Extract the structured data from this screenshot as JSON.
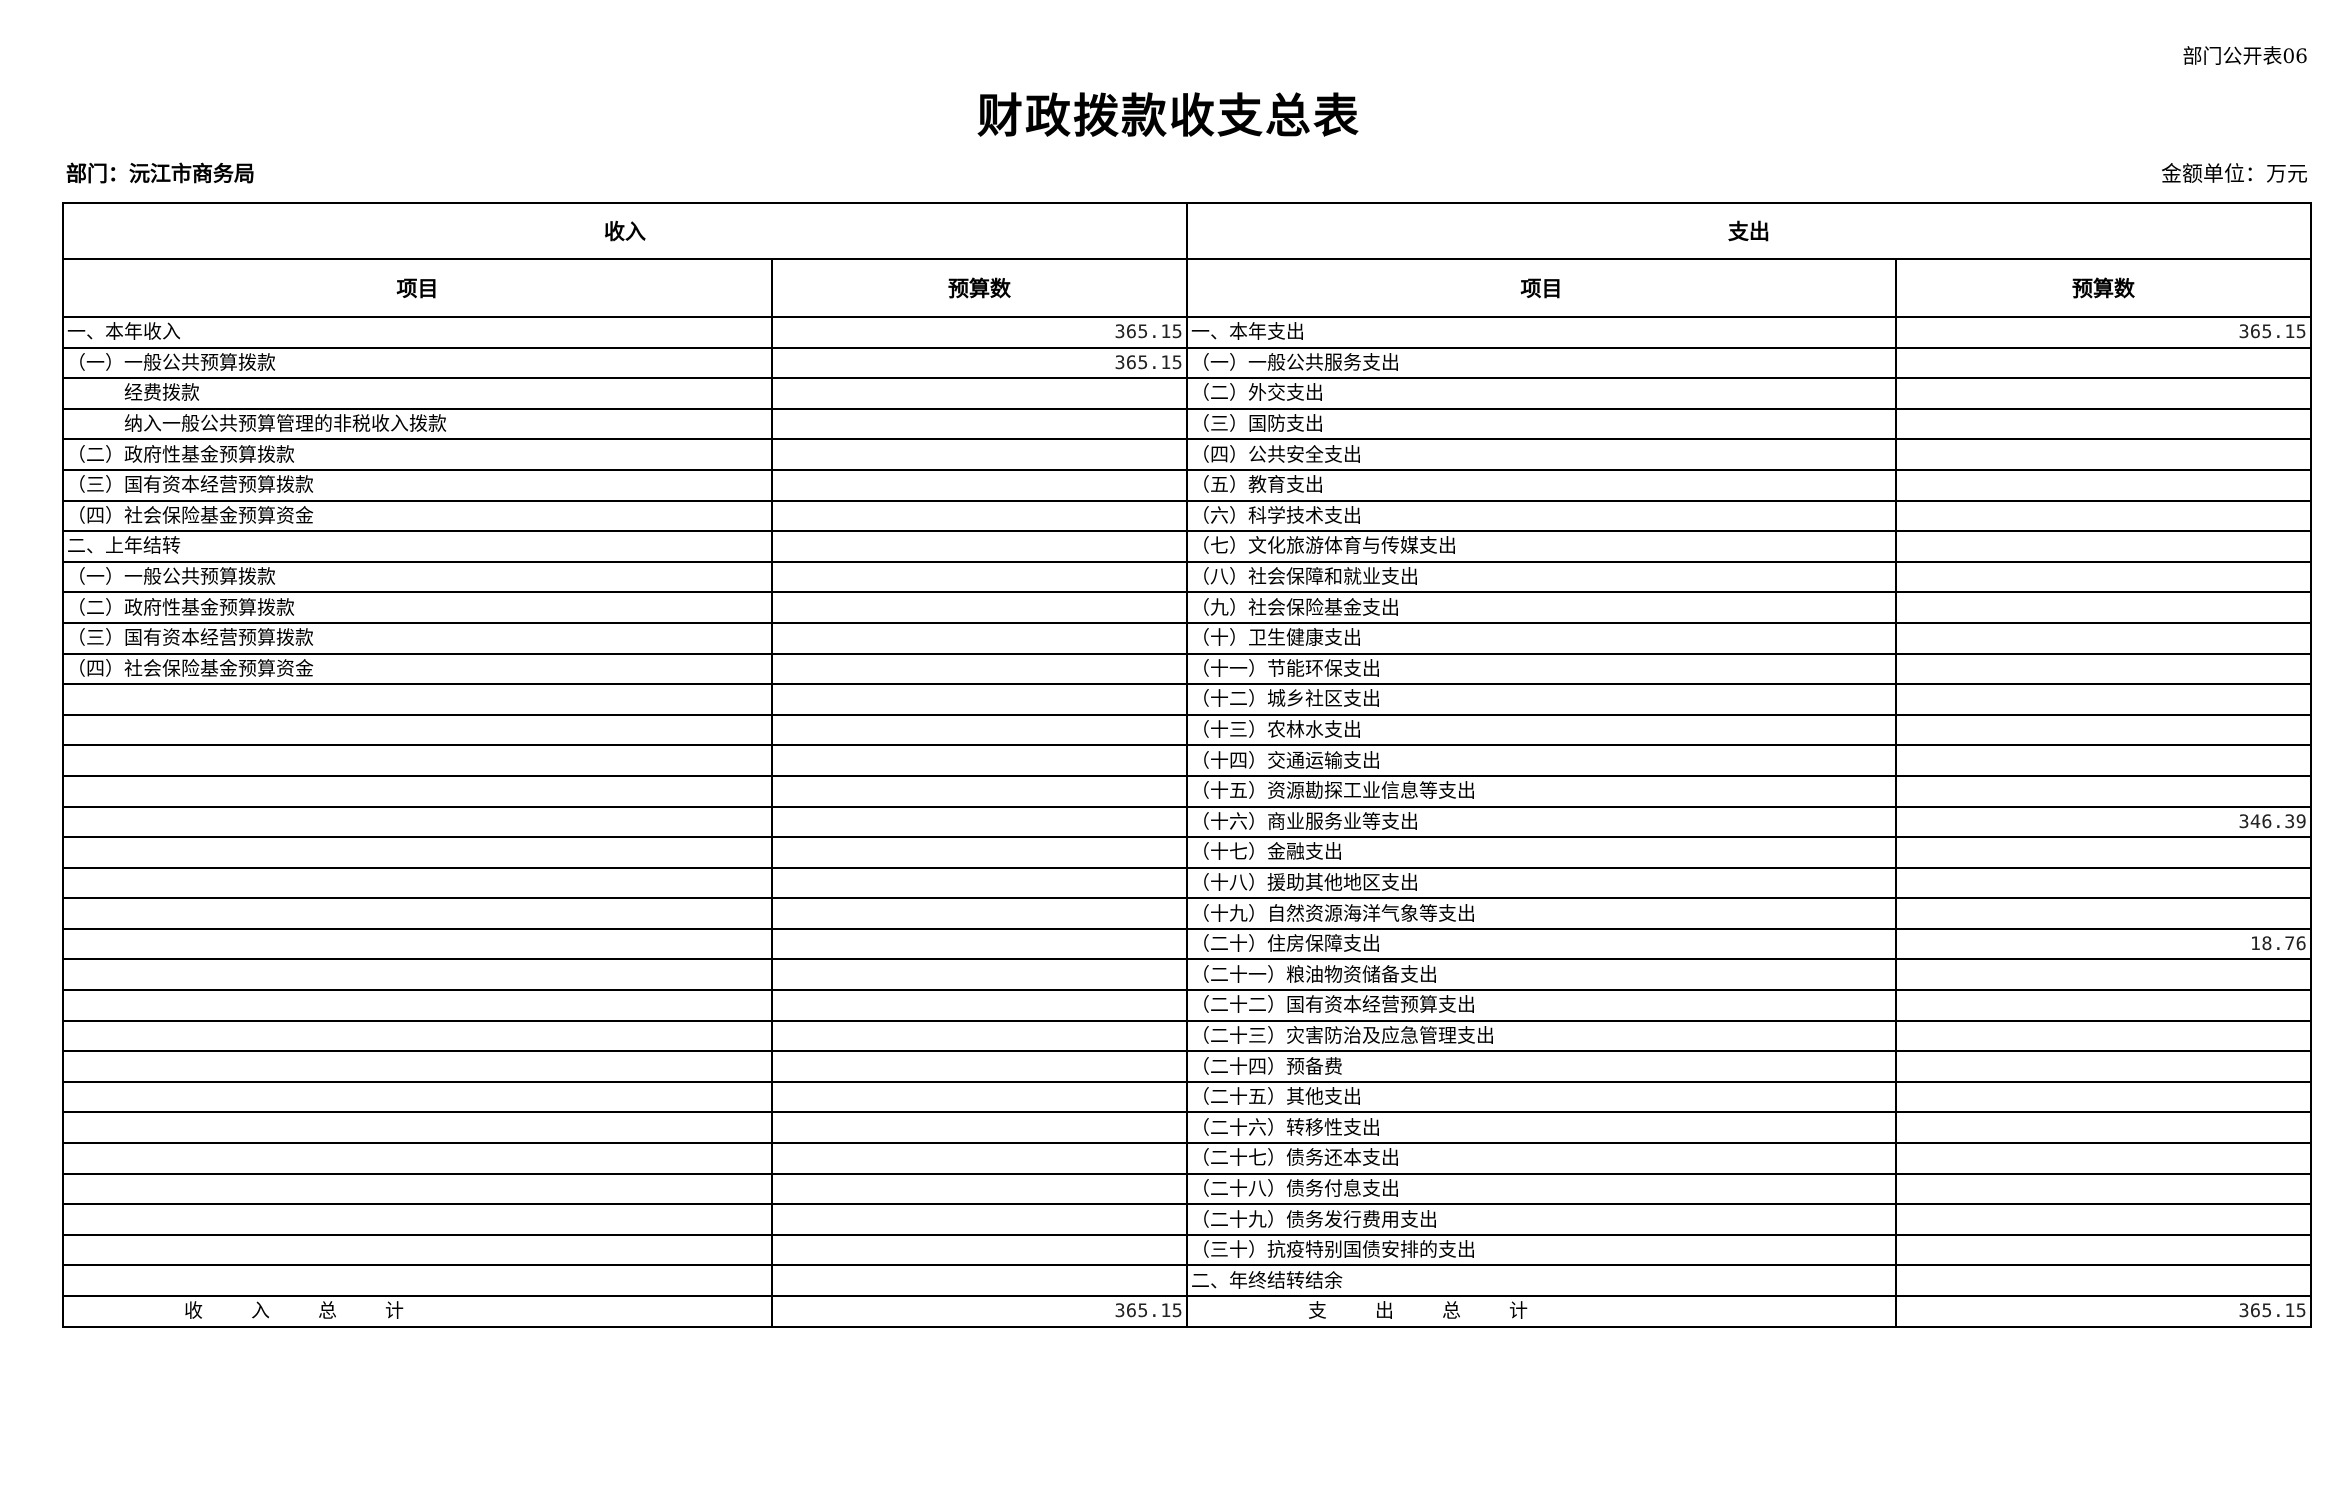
{
  "form_no": "部门公开表06",
  "title": "财政拨款收支总表",
  "department": "部门：沅江市商务局",
  "unit": "金额单位：万元",
  "headers": {
    "income": "收入",
    "expense": "支出",
    "item": "项目",
    "budget": "预算数"
  },
  "income": [
    {
      "item": "一、本年收入",
      "value": "365.15"
    },
    {
      "item": "（一）一般公共预算拨款",
      "value": "365.15"
    },
    {
      "item": "经费拨款",
      "value": "",
      "indent": true
    },
    {
      "item": "纳入一般公共预算管理的非税收入拨款",
      "value": "",
      "indent": true
    },
    {
      "item": "（二）政府性基金预算拨款",
      "value": ""
    },
    {
      "item": "（三）国有资本经营预算拨款",
      "value": ""
    },
    {
      "item": "（四）社会保险基金预算资金",
      "value": ""
    },
    {
      "item": "二、上年结转",
      "value": ""
    },
    {
      "item": "（一）一般公共预算拨款",
      "value": ""
    },
    {
      "item": "（二）政府性基金预算拨款",
      "value": ""
    },
    {
      "item": "（三）国有资本经营预算拨款",
      "value": ""
    },
    {
      "item": "（四）社会保险基金预算资金",
      "value": ""
    }
  ],
  "expense": [
    {
      "item": "一、本年支出",
      "value": "365.15"
    },
    {
      "item": "（一）一般公共服务支出",
      "value": ""
    },
    {
      "item": "（二）外交支出",
      "value": ""
    },
    {
      "item": "（三）国防支出",
      "value": ""
    },
    {
      "item": "（四）公共安全支出",
      "value": ""
    },
    {
      "item": "（五）教育支出",
      "value": ""
    },
    {
      "item": "（六）科学技术支出",
      "value": ""
    },
    {
      "item": "（七）文化旅游体育与传媒支出",
      "value": ""
    },
    {
      "item": "（八）社会保障和就业支出",
      "value": ""
    },
    {
      "item": "（九）社会保险基金支出",
      "value": ""
    },
    {
      "item": "（十）卫生健康支出",
      "value": ""
    },
    {
      "item": "（十一）节能环保支出",
      "value": ""
    },
    {
      "item": "（十二）城乡社区支出",
      "value": ""
    },
    {
      "item": "（十三）农林水支出",
      "value": ""
    },
    {
      "item": "（十四）交通运输支出",
      "value": ""
    },
    {
      "item": "（十五）资源勘探工业信息等支出",
      "value": ""
    },
    {
      "item": "（十六）商业服务业等支出",
      "value": "346.39"
    },
    {
      "item": "（十七）金融支出",
      "value": ""
    },
    {
      "item": "（十八）援助其他地区支出",
      "value": ""
    },
    {
      "item": "（十九）自然资源海洋气象等支出",
      "value": ""
    },
    {
      "item": "（二十）住房保障支出",
      "value": "18.76"
    },
    {
      "item": "（二十一）粮油物资储备支出",
      "value": ""
    },
    {
      "item": "（二十二）国有资本经营预算支出",
      "value": ""
    },
    {
      "item": "（二十三）灾害防治及应急管理支出",
      "value": ""
    },
    {
      "item": "（二十四）预备费",
      "value": ""
    },
    {
      "item": "（二十五）其他支出",
      "value": ""
    },
    {
      "item": "（二十六）转移性支出",
      "value": ""
    },
    {
      "item": "（二十七）债务还本支出",
      "value": ""
    },
    {
      "item": "（二十八）债务付息支出",
      "value": ""
    },
    {
      "item": "（二十九）债务发行费用支出",
      "value": ""
    },
    {
      "item": "（三十）抗疫特别国债安排的支出",
      "value": ""
    },
    {
      "item": "二、年终结转结余",
      "value": ""
    }
  ],
  "totals": {
    "income_label": "收入总计",
    "income_value": "365.15",
    "expense_label": "支出总计",
    "expense_value": "365.15"
  }
}
